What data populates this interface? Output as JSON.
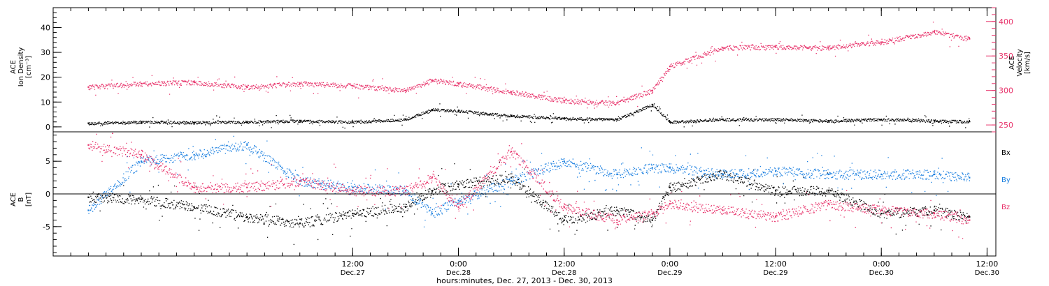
{
  "colors": {
    "black": "#000000",
    "pink": "#e8336b",
    "blue": "#1a7fe0"
  },
  "footer": {
    "xlabel": "hours:minutes, Dec. 27, 2013 - Dec. 30, 2013"
  },
  "time_axis": {
    "start": "2013-12-26T02:00",
    "end": "2013-12-30T13:00",
    "ticks": [
      {
        "time": "2013-12-27T12:00",
        "label1": "12:00",
        "label2": "Dec.27"
      },
      {
        "time": "2013-12-28T00:00",
        "label1": "0:00",
        "label2": "Dec.28"
      },
      {
        "time": "2013-12-28T12:00",
        "label1": "12:00",
        "label2": "Dec.28"
      },
      {
        "time": "2013-12-29T00:00",
        "label1": "0:00",
        "label2": "Dec.29"
      },
      {
        "time": "2013-12-29T12:00",
        "label1": "12:00",
        "label2": "Dec.29"
      },
      {
        "time": "2013-12-30T00:00",
        "label1": "0:00",
        "label2": "Dec.30"
      },
      {
        "time": "2013-12-30T12:00",
        "label1": "12:00",
        "label2": "Dec.30"
      }
    ]
  },
  "chart_data": [
    {
      "type": "scatter",
      "ylabel_left": [
        "ACE",
        "Ion Density",
        "[cm⁻³]"
      ],
      "ylabel_right": [
        "ACE",
        "Velocity",
        "[km/s]"
      ],
      "ylim_left": [
        -2,
        48
      ],
      "ylim_right": [
        240,
        420
      ],
      "yticks_left": [
        0,
        10,
        20,
        30,
        40
      ],
      "yticks_right": [
        250,
        300,
        350,
        400
      ],
      "series": [
        {
          "color": "black",
          "axis": "left",
          "points": [
            [
              "2013-12-26T06:00",
              1.5
            ],
            [
              "2013-12-26T12:00",
              2.0
            ],
            [
              "2013-12-26T18:00",
              1.8
            ],
            [
              "2013-12-27T00:00",
              2.0
            ],
            [
              "2013-12-27T06:00",
              2.5
            ],
            [
              "2013-12-27T12:00",
              2.0
            ],
            [
              "2013-12-27T18:00",
              3.0
            ],
            [
              "2013-12-27T21:00",
              7.0
            ],
            [
              "2013-12-28T00:00",
              6.5
            ],
            [
              "2013-12-28T06:00",
              4.5
            ],
            [
              "2013-12-28T12:00",
              3.5
            ],
            [
              "2013-12-28T18:00",
              3.0
            ],
            [
              "2013-12-28T22:00",
              9.0
            ],
            [
              "2013-12-29T00:00",
              2.0
            ],
            [
              "2013-12-29T06:00",
              3.0
            ],
            [
              "2013-12-29T12:00",
              3.0
            ],
            [
              "2013-12-29T18:00",
              2.5
            ],
            [
              "2013-12-30T00:00",
              3.0
            ],
            [
              "2013-12-30T06:00",
              2.5
            ],
            [
              "2013-12-30T10:00",
              2.2
            ]
          ]
        },
        {
          "color": "pink",
          "axis": "right",
          "points": [
            [
              "2013-12-26T06:00",
              305
            ],
            [
              "2013-12-26T12:00",
              310
            ],
            [
              "2013-12-26T18:00",
              312
            ],
            [
              "2013-12-27T00:00",
              305
            ],
            [
              "2013-12-27T06:00",
              310
            ],
            [
              "2013-12-27T12:00",
              307
            ],
            [
              "2013-12-27T18:00",
              300
            ],
            [
              "2013-12-27T21:00",
              315
            ],
            [
              "2013-12-28T00:00",
              310
            ],
            [
              "2013-12-28T06:00",
              298
            ],
            [
              "2013-12-28T12:00",
              285
            ],
            [
              "2013-12-28T18:00",
              282
            ],
            [
              "2013-12-28T22:00",
              300
            ],
            [
              "2013-12-29T00:00",
              335
            ],
            [
              "2013-12-29T06:00",
              362
            ],
            [
              "2013-12-29T12:00",
              363
            ],
            [
              "2013-12-29T18:00",
              362
            ],
            [
              "2013-12-30T00:00",
              370
            ],
            [
              "2013-12-30T06:00",
              385
            ],
            [
              "2013-12-30T10:00",
              375
            ]
          ]
        }
      ]
    },
    {
      "type": "scatter",
      "ylabel_left": [
        "ACE",
        "B",
        "[nT]"
      ],
      "ylim_left": [
        -9.5,
        9.5
      ],
      "yticks_left": [
        -5,
        0,
        5
      ],
      "zero_line": 0,
      "legend": [
        {
          "label": "Bx",
          "color": "black"
        },
        {
          "label": "By",
          "color": "blue"
        },
        {
          "label": "Bz",
          "color": "pink"
        }
      ],
      "series": [
        {
          "name": "Bx",
          "color": "black",
          "points": [
            [
              "2013-12-26T06:00",
              -0.5
            ],
            [
              "2013-12-26T12:00",
              -0.8
            ],
            [
              "2013-12-26T18:00",
              -2.0
            ],
            [
              "2013-12-27T00:00",
              -3.5
            ],
            [
              "2013-12-27T06:00",
              -4.5
            ],
            [
              "2013-12-27T12:00",
              -3.0
            ],
            [
              "2013-12-27T18:00",
              -2.0
            ],
            [
              "2013-12-27T21:00",
              0.5
            ],
            [
              "2013-12-28T00:00",
              1.5
            ],
            [
              "2013-12-28T06:00",
              2.5
            ],
            [
              "2013-12-28T12:00",
              -4.0
            ],
            [
              "2013-12-28T18:00",
              -2.5
            ],
            [
              "2013-12-28T22:00",
              -4.0
            ],
            [
              "2013-12-29T00:00",
              1.0
            ],
            [
              "2013-12-29T06:00",
              3.0
            ],
            [
              "2013-12-29T12:00",
              0.5
            ],
            [
              "2013-12-29T18:00",
              0.5
            ],
            [
              "2013-12-30T00:00",
              -3.0
            ],
            [
              "2013-12-30T06:00",
              -2.5
            ],
            [
              "2013-12-30T10:00",
              -3.5
            ]
          ]
        },
        {
          "name": "By",
          "color": "blue",
          "points": [
            [
              "2013-12-26T06:00",
              -2.5
            ],
            [
              "2013-12-26T12:00",
              5.0
            ],
            [
              "2013-12-26T18:00",
              6.0
            ],
            [
              "2013-12-27T00:00",
              7.5
            ],
            [
              "2013-12-27T06:00",
              2.0
            ],
            [
              "2013-12-27T12:00",
              1.0
            ],
            [
              "2013-12-27T18:00",
              0.5
            ],
            [
              "2013-12-27T21:00",
              -3.0
            ],
            [
              "2013-12-28T00:00",
              -1.0
            ],
            [
              "2013-12-28T06:00",
              2.0
            ],
            [
              "2013-12-28T12:00",
              5.0
            ],
            [
              "2013-12-28T18:00",
              3.0
            ],
            [
              "2013-12-28T22:00",
              4.0
            ],
            [
              "2013-12-29T00:00",
              4.0
            ],
            [
              "2013-12-29T06:00",
              3.0
            ],
            [
              "2013-12-29T12:00",
              3.5
            ],
            [
              "2013-12-29T18:00",
              3.0
            ],
            [
              "2013-12-30T00:00",
              3.0
            ],
            [
              "2013-12-30T06:00",
              3.0
            ],
            [
              "2013-12-30T10:00",
              2.5
            ]
          ]
        },
        {
          "name": "Bz",
          "color": "pink",
          "points": [
            [
              "2013-12-26T06:00",
              7.5
            ],
            [
              "2013-12-26T12:00",
              6.0
            ],
            [
              "2013-12-26T18:00",
              1.0
            ],
            [
              "2013-12-27T00:00",
              1.0
            ],
            [
              "2013-12-27T06:00",
              2.0
            ],
            [
              "2013-12-27T12:00",
              0.5
            ],
            [
              "2013-12-27T18:00",
              0.5
            ],
            [
              "2013-12-27T21:00",
              2.5
            ],
            [
              "2013-12-28T00:00",
              -2.0
            ],
            [
              "2013-12-28T06:00",
              6.5
            ],
            [
              "2013-12-28T12:00",
              -2.0
            ],
            [
              "2013-12-28T18:00",
              -4.0
            ],
            [
              "2013-12-28T22:00",
              -3.0
            ],
            [
              "2013-12-29T00:00",
              -1.5
            ],
            [
              "2013-12-29T06:00",
              -2.5
            ],
            [
              "2013-12-29T12:00",
              -3.5
            ],
            [
              "2013-12-29T18:00",
              -1.5
            ],
            [
              "2013-12-30T00:00",
              -2.5
            ],
            [
              "2013-12-30T06:00",
              -3.0
            ],
            [
              "2013-12-30T10:00",
              -4.0
            ]
          ]
        }
      ]
    }
  ]
}
